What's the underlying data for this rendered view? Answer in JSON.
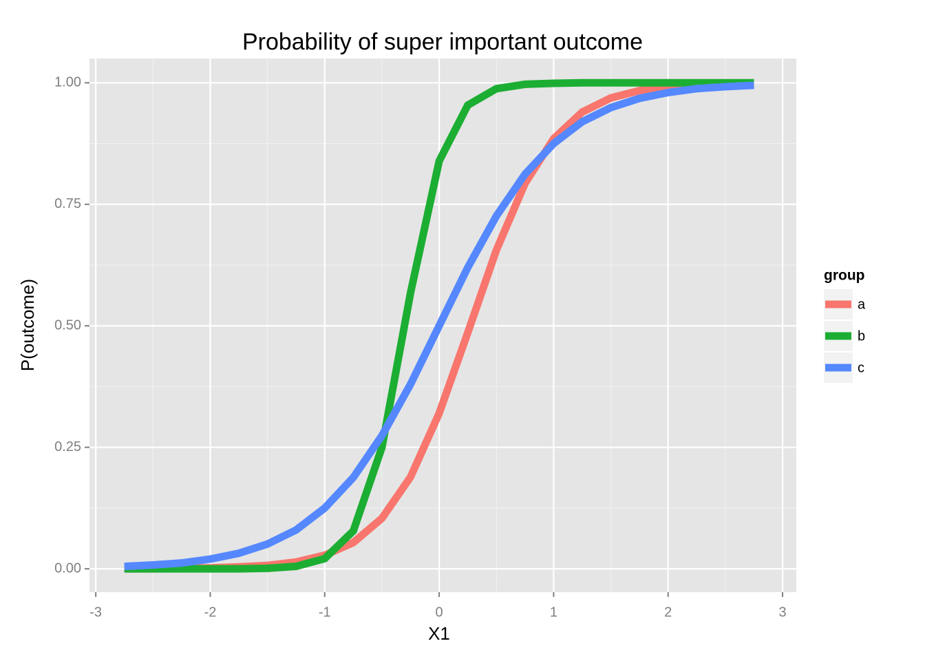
{
  "chart_data": {
    "type": "line",
    "title": "Probability of super important outcome",
    "x_label": "X1",
    "y_label": "P(outcome)",
    "x": [
      -2.75,
      -2.5,
      -2.25,
      -2,
      -1.75,
      -1.5,
      -1.25,
      -1,
      -0.75,
      -0.5,
      -0.25,
      0,
      0.25,
      0.5,
      0.75,
      1,
      1.25,
      1.5,
      1.75,
      2,
      2.25,
      2.5,
      2.75
    ],
    "series": [
      {
        "name": "a",
        "color": "#F8766D",
        "values": [
          0,
          0,
          0.001,
          0.002,
          0.004,
          0.007,
          0.014,
          0.028,
          0.054,
          0.104,
          0.189,
          0.32,
          0.486,
          0.656,
          0.793,
          0.885,
          0.94,
          0.969,
          0.984,
          0.992,
          0.996,
          0.998,
          0.999
        ]
      },
      {
        "name": "b",
        "color": "#1CAE32",
        "values": [
          0,
          0,
          0,
          0,
          0,
          0.001,
          0.005,
          0.021,
          0.078,
          0.25,
          0.568,
          0.839,
          0.954,
          0.988,
          0.997,
          0.999,
          1,
          1,
          1,
          1,
          1,
          1,
          1
        ]
      },
      {
        "name": "c",
        "color": "#5588FF",
        "values": [
          0.005,
          0.008,
          0.012,
          0.02,
          0.032,
          0.051,
          0.08,
          0.125,
          0.188,
          0.274,
          0.38,
          0.5,
          0.62,
          0.726,
          0.812,
          0.875,
          0.92,
          0.949,
          0.968,
          0.98,
          0.988,
          0.992,
          0.995
        ]
      }
    ],
    "legend_title": "group",
    "xlim": [
      -3.055,
      3.12
    ],
    "xticks": [
      -3,
      -2,
      -1,
      0,
      1,
      2,
      3
    ],
    "ylim": [
      -0.048,
      1.05
    ],
    "yticks": [
      {
        "value": 0,
        "label": "0.00"
      },
      {
        "value": 0.25,
        "label": "0.25"
      },
      {
        "value": 0.5,
        "label": "0.50"
      },
      {
        "value": 0.75,
        "label": "0.75"
      },
      {
        "value": 1,
        "label": "1.00"
      }
    ],
    "grid": true,
    "minor_grid": true,
    "legend_position": "right"
  }
}
